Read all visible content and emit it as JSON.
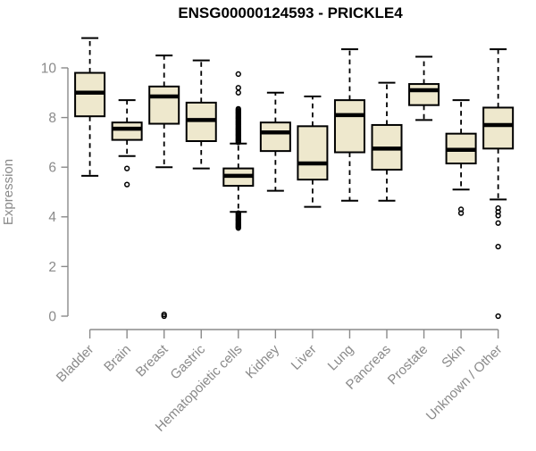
{
  "chart_data": {
    "type": "boxplot",
    "title": "ENSG00000124593 - PRICKLE4",
    "xlabel": "",
    "ylabel": "Expression",
    "ylim": [
      0,
      10
    ],
    "yticks": [
      0,
      2,
      4,
      6,
      8,
      10
    ],
    "grid": false,
    "legend": null,
    "categories": [
      "Bladder",
      "Brain",
      "Breast",
      "Gastric",
      "Hematopoietic cells",
      "Kidney",
      "Liver",
      "Lung",
      "Pancreas",
      "Prostate",
      "Skin",
      "Unknown / Other"
    ],
    "series": [
      {
        "category": "Bladder",
        "whisker_low": 5.65,
        "q1": 8.05,
        "median": 9.0,
        "q3": 9.8,
        "whisker_high": 11.2,
        "outliers": []
      },
      {
        "category": "Brain",
        "whisker_low": 6.45,
        "q1": 7.1,
        "median": 7.55,
        "q3": 7.8,
        "whisker_high": 8.7,
        "outliers": [
          5.95,
          5.3
        ]
      },
      {
        "category": "Breast",
        "whisker_low": 6.0,
        "q1": 7.75,
        "median": 8.85,
        "q3": 9.25,
        "whisker_high": 10.5,
        "outliers": [
          0.07,
          0
        ]
      },
      {
        "category": "Gastric",
        "whisker_low": 5.95,
        "q1": 7.05,
        "median": 7.9,
        "q3": 8.6,
        "whisker_high": 10.3,
        "outliers": []
      },
      {
        "category": "Hematopoietic cells",
        "whisker_low": 4.2,
        "q1": 5.25,
        "median": 5.65,
        "q3": 5.95,
        "whisker_high": 6.95,
        "outliers": [
          9.75,
          9.2,
          9.0,
          8.35,
          8.3,
          8.25,
          8.2,
          8.15,
          8.1,
          8.05,
          8.0,
          7.95,
          7.9,
          7.85,
          7.8,
          7.75,
          7.7,
          7.65,
          7.6,
          7.55,
          7.5,
          7.45,
          7.4,
          7.35,
          7.3,
          7.25,
          7.2,
          7.15,
          7.1,
          7.05,
          7.0,
          4.15,
          4.1,
          4.05,
          4.0,
          3.95,
          3.9,
          3.85,
          3.8,
          3.75,
          3.7,
          3.65,
          3.6,
          3.55
        ]
      },
      {
        "category": "Kidney",
        "whisker_low": 5.05,
        "q1": 6.65,
        "median": 7.4,
        "q3": 7.8,
        "whisker_high": 9.0,
        "outliers": []
      },
      {
        "category": "Liver",
        "whisker_low": 4.4,
        "q1": 5.5,
        "median": 6.15,
        "q3": 7.65,
        "whisker_high": 8.85,
        "outliers": []
      },
      {
        "category": "Lung",
        "whisker_low": 4.65,
        "q1": 6.6,
        "median": 8.1,
        "q3": 8.7,
        "whisker_high": 10.75,
        "outliers": []
      },
      {
        "category": "Pancreas",
        "whisker_low": 4.65,
        "q1": 5.9,
        "median": 6.75,
        "q3": 7.7,
        "whisker_high": 9.4,
        "outliers": []
      },
      {
        "category": "Prostate",
        "whisker_low": 7.9,
        "q1": 8.5,
        "median": 9.1,
        "q3": 9.35,
        "whisker_high": 10.45,
        "outliers": []
      },
      {
        "category": "Skin",
        "whisker_low": 5.1,
        "q1": 6.15,
        "median": 6.7,
        "q3": 7.35,
        "whisker_high": 8.7,
        "outliers": [
          4.3,
          4.15
        ]
      },
      {
        "category": "Unknown / Other",
        "whisker_low": 4.7,
        "q1": 6.75,
        "median": 7.7,
        "q3": 8.4,
        "whisker_high": 10.75,
        "outliers": [
          4.35,
          4.2,
          4.05,
          3.75,
          2.8,
          0
        ]
      }
    ],
    "colors": {
      "box_fill": "#EEE8CD",
      "box_stroke": "#000000",
      "median": "#000000",
      "axis_line": "#8a8a8a",
      "axis_text": "#8a8a8a",
      "title": "#000000",
      "background": "#ffffff"
    }
  }
}
